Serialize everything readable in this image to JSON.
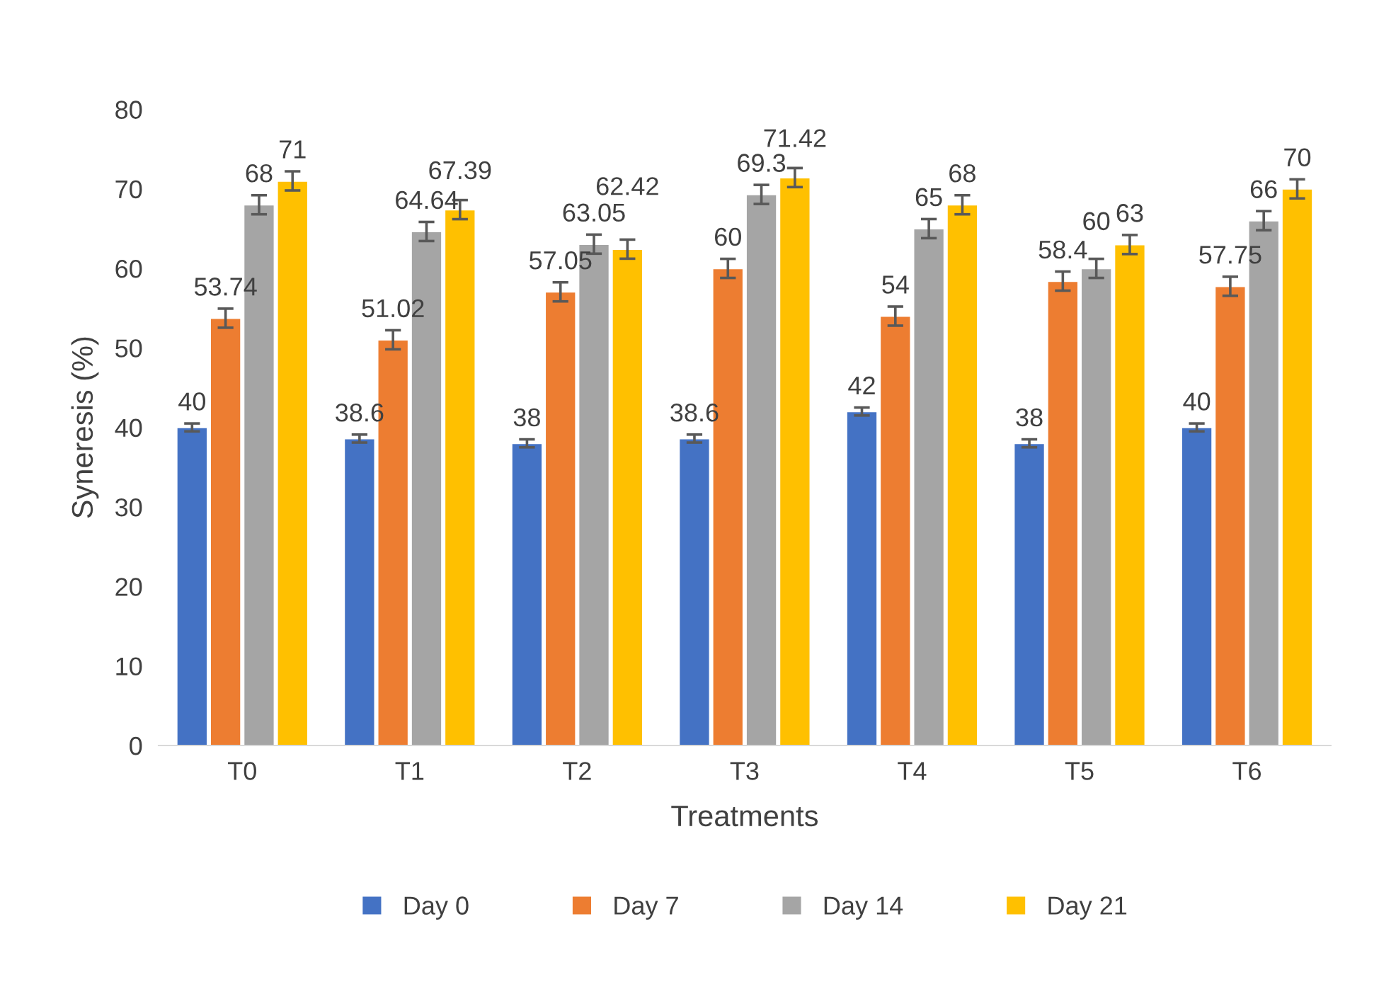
{
  "chart_data": {
    "type": "bar",
    "xlabel": "Treatments",
    "ylabel": "Syneresis (%)",
    "categories": [
      "T0",
      "T1",
      "T2",
      "T3",
      "T4",
      "T5",
      "T6"
    ],
    "series": [
      {
        "name": "Day 0",
        "color": "#4472c4",
        "values": [
          40,
          38.6,
          38,
          38.6,
          42,
          38,
          40
        ],
        "errors": [
          0.5,
          0.5,
          0.5,
          0.5,
          0.5,
          0.5,
          0.5
        ]
      },
      {
        "name": "Day 7",
        "color": "#ed7d31",
        "values": [
          53.74,
          51.02,
          57.05,
          60,
          54,
          58.4,
          57.75
        ],
        "errors": [
          1.2,
          1.2,
          1.2,
          1.2,
          1.2,
          1.2,
          1.2
        ]
      },
      {
        "name": "Day 14",
        "color": "#a5a5a5",
        "values": [
          68,
          64.64,
          63.05,
          69.3,
          65,
          60,
          66
        ],
        "errors": [
          1.2,
          1.2,
          1.2,
          1.2,
          1.2,
          1.2,
          1.2
        ]
      },
      {
        "name": "Day 21",
        "color": "#ffc000",
        "values": [
          71,
          67.39,
          62.42,
          71.42,
          68,
          63,
          70
        ],
        "errors": [
          1.2,
          1.2,
          1.2,
          1.2,
          1.2,
          1.2,
          1.2
        ]
      }
    ],
    "ylim": [
      0,
      80
    ],
    "yticks": [
      0,
      10,
      20,
      30,
      40,
      50,
      60,
      70,
      80
    ],
    "data_labels": true,
    "legend": "bottom",
    "grid": false
  }
}
